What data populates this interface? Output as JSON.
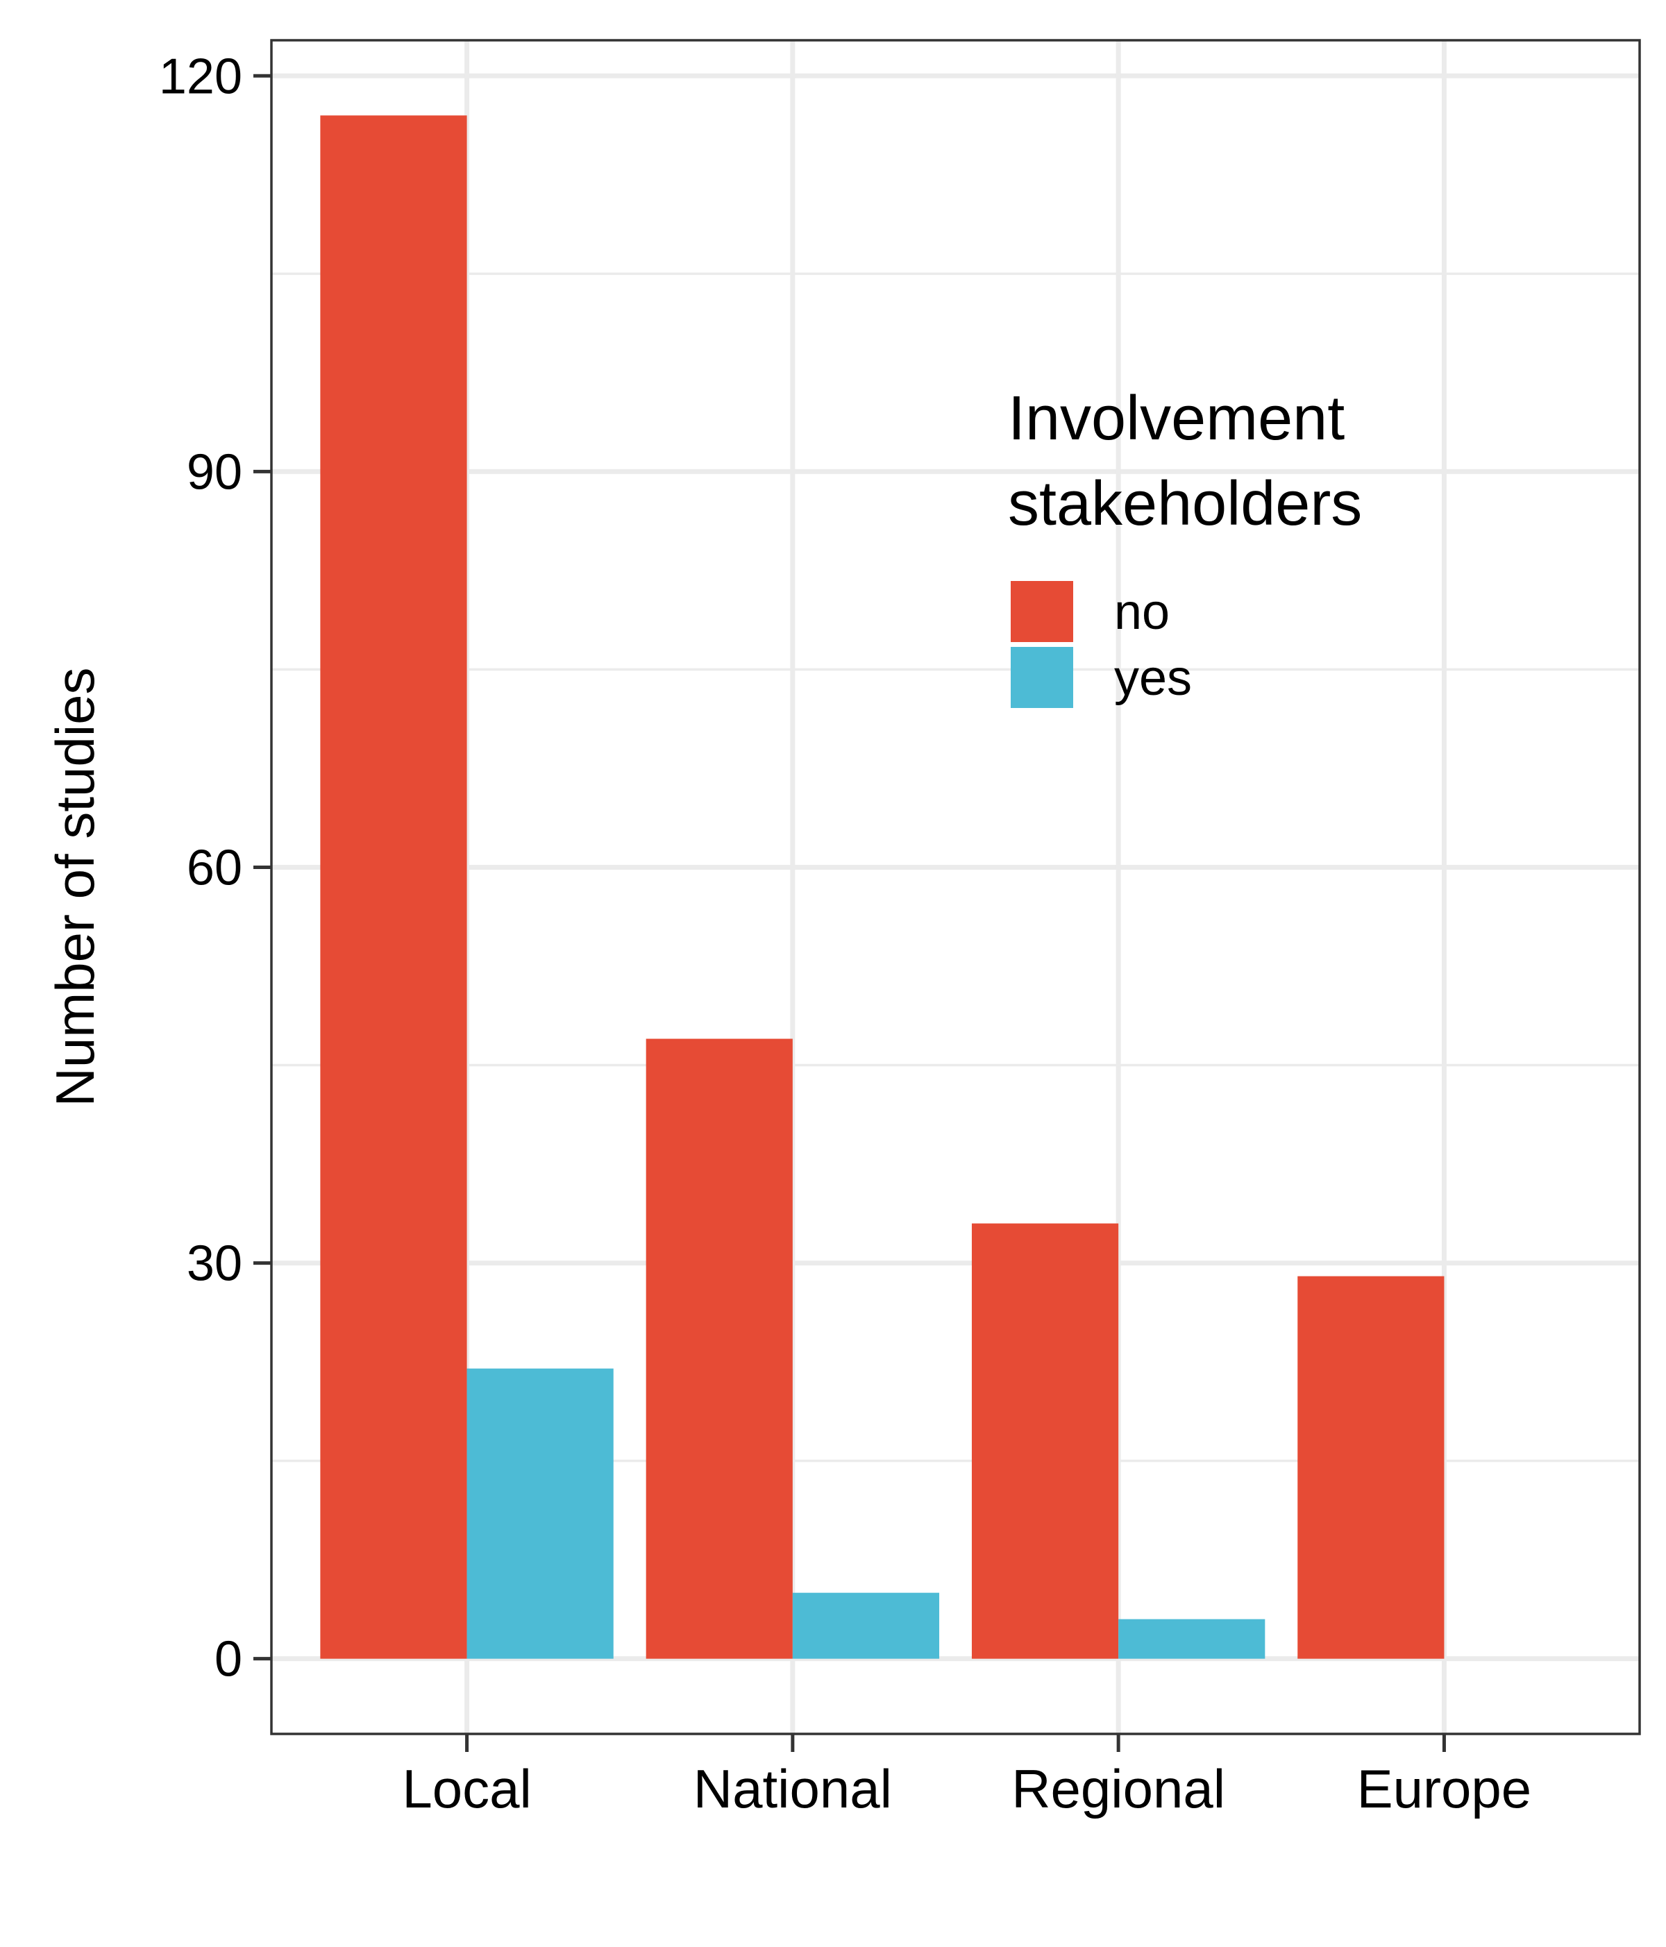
{
  "chart_data": {
    "type": "bar",
    "categories": [
      "Local",
      "National",
      "Regional",
      "Europe"
    ],
    "series": [
      {
        "name": "no",
        "values": [
          117,
          47,
          33,
          29
        ],
        "color": "#E64B35"
      },
      {
        "name": "yes",
        "values": [
          22,
          5,
          3,
          0
        ],
        "color": "#4DBBD5"
      }
    ],
    "ylabel": "Number of studies",
    "xlabel": "",
    "ylim": [
      -5.7,
      122.7
    ],
    "yticks": [
      0,
      30,
      60,
      90,
      120
    ],
    "yminor": [
      15,
      45,
      75,
      105
    ],
    "grid": true,
    "legend": {
      "title_lines": [
        "Involvement",
        "stakeholders"
      ],
      "position": "inside-top-right"
    }
  }
}
